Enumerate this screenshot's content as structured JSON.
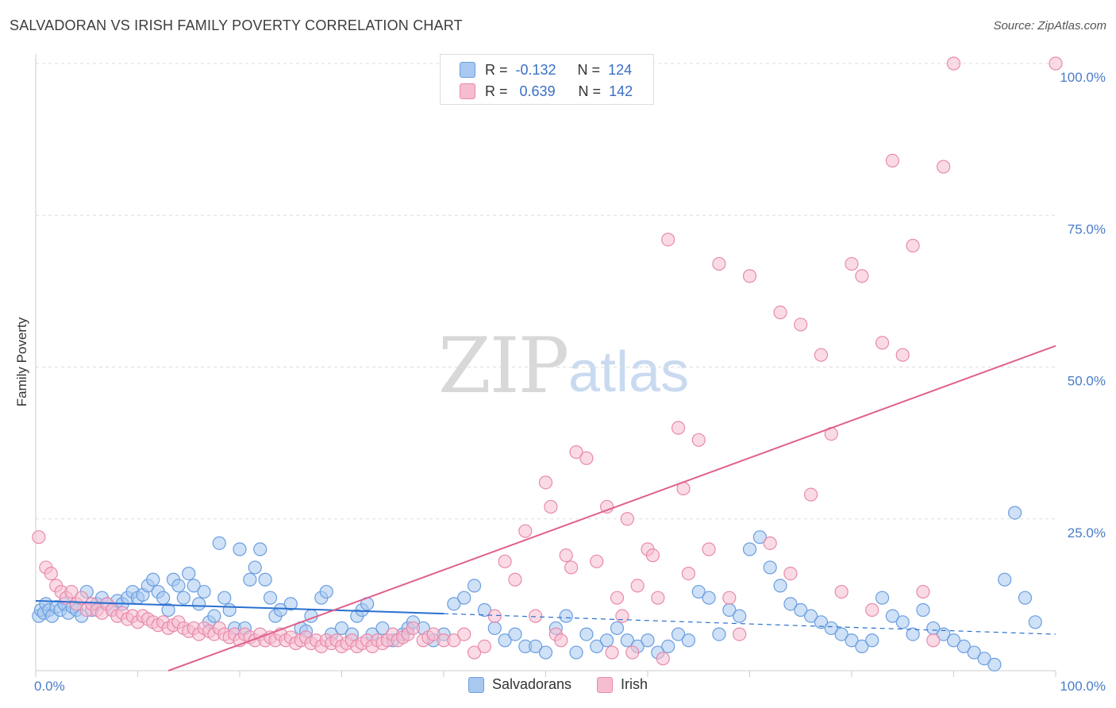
{
  "title": "SALVADORAN VS IRISH FAMILY POVERTY CORRELATION CHART",
  "source": "Source: ZipAtlas.com",
  "watermark": {
    "zip": "ZIP",
    "atlas": "atlas"
  },
  "colors": {
    "blue_fill": "#a8c8f0",
    "blue_stroke": "#6a9ee0",
    "blue_line": "#2a6fcf",
    "pink_fill": "#f6bdd0",
    "pink_stroke": "#e88aab",
    "pink_line": "#e0608c",
    "tick_text": "#4a7cc9",
    "grid": "#dddddd"
  },
  "legend": {
    "rows": [
      {
        "r_label": "R =",
        "r_value": "-0.132",
        "n_label": "N =",
        "n_value": "124"
      },
      {
        "r_label": "R =",
        "r_value": "0.639",
        "n_label": "N =",
        "n_value": "142"
      }
    ]
  },
  "bottom_legend": [
    "Salvadorans",
    "Irish"
  ],
  "chart_data": {
    "type": "scatter",
    "ylabel": "Family Poverty",
    "xlim": [
      0,
      100
    ],
    "ylim": [
      0,
      100
    ],
    "x_ticks": [
      "0.0%",
      "100.0%"
    ],
    "y_ticks": [
      {
        "v": 25,
        "label": "25.0%"
      },
      {
        "v": 50,
        "label": "50.0%"
      },
      {
        "v": 75,
        "label": "75.0%"
      },
      {
        "v": 100,
        "label": "100.0%"
      }
    ],
    "grid": true,
    "legend_position": "top-center",
    "series": [
      {
        "name": "Salvadorans",
        "trend": {
          "x0": 0,
          "y0": 11.5,
          "x1": 40,
          "y1": 9.4,
          "dash_x1": 100,
          "dash_y1": 6.0
        },
        "points": [
          [
            0.3,
            9
          ],
          [
            0.5,
            10
          ],
          [
            0.8,
            9.5
          ],
          [
            1,
            11
          ],
          [
            1.3,
            10
          ],
          [
            1.6,
            9
          ],
          [
            2,
            10.5
          ],
          [
            2.4,
            10
          ],
          [
            2.8,
            11
          ],
          [
            3.2,
            9.5
          ],
          [
            3.6,
            10.5
          ],
          [
            4,
            10
          ],
          [
            4.5,
            9
          ],
          [
            5,
            13
          ],
          [
            5.5,
            10
          ],
          [
            6,
            11
          ],
          [
            6.5,
            12
          ],
          [
            7,
            11
          ],
          [
            7.5,
            10
          ],
          [
            8,
            11.5
          ],
          [
            8.5,
            11
          ],
          [
            9,
            12
          ],
          [
            9.5,
            13
          ],
          [
            10,
            12
          ],
          [
            10.5,
            12.5
          ],
          [
            11,
            14
          ],
          [
            11.5,
            15
          ],
          [
            12,
            13
          ],
          [
            12.5,
            12
          ],
          [
            13,
            10
          ],
          [
            13.5,
            15
          ],
          [
            14,
            14
          ],
          [
            14.5,
            12
          ],
          [
            15,
            16
          ],
          [
            15.5,
            14
          ],
          [
            16,
            11
          ],
          [
            16.5,
            13
          ],
          [
            17,
            8
          ],
          [
            17.5,
            9
          ],
          [
            18,
            21
          ],
          [
            18.5,
            12
          ],
          [
            19,
            10
          ],
          [
            19.5,
            7
          ],
          [
            20,
            20
          ],
          [
            20.5,
            7
          ],
          [
            21,
            15
          ],
          [
            21.5,
            17
          ],
          [
            22,
            20
          ],
          [
            22.5,
            15
          ],
          [
            23,
            12
          ],
          [
            23.5,
            9
          ],
          [
            24,
            10
          ],
          [
            25,
            11
          ],
          [
            26,
            7
          ],
          [
            26.5,
            6.5
          ],
          [
            27,
            9
          ],
          [
            28,
            12
          ],
          [
            28.5,
            13
          ],
          [
            29,
            6
          ],
          [
            30,
            7
          ],
          [
            31,
            6
          ],
          [
            31.5,
            9
          ],
          [
            32,
            10
          ],
          [
            32.5,
            11
          ],
          [
            33,
            6
          ],
          [
            34,
            7
          ],
          [
            35,
            5
          ],
          [
            36,
            6
          ],
          [
            36.5,
            7
          ],
          [
            37,
            8
          ],
          [
            38,
            7
          ],
          [
            39,
            5
          ],
          [
            40,
            6
          ],
          [
            41,
            11
          ],
          [
            42,
            12
          ],
          [
            43,
            14
          ],
          [
            44,
            10
          ],
          [
            45,
            7
          ],
          [
            46,
            5
          ],
          [
            47,
            6
          ],
          [
            48,
            4
          ],
          [
            49,
            4
          ],
          [
            50,
            3
          ],
          [
            51,
            7
          ],
          [
            52,
            9
          ],
          [
            53,
            3
          ],
          [
            54,
            6
          ],
          [
            55,
            4
          ],
          [
            56,
            5
          ],
          [
            57,
            7
          ],
          [
            58,
            5
          ],
          [
            59,
            4
          ],
          [
            60,
            5
          ],
          [
            61,
            3
          ],
          [
            62,
            4
          ],
          [
            63,
            6
          ],
          [
            64,
            5
          ],
          [
            65,
            13
          ],
          [
            66,
            12
          ],
          [
            67,
            6
          ],
          [
            68,
            10
          ],
          [
            69,
            9
          ],
          [
            70,
            20
          ],
          [
            71,
            22
          ],
          [
            72,
            17
          ],
          [
            73,
            14
          ],
          [
            74,
            11
          ],
          [
            75,
            10
          ],
          [
            76,
            9
          ],
          [
            77,
            8
          ],
          [
            78,
            7
          ],
          [
            79,
            6
          ],
          [
            80,
            5
          ],
          [
            81,
            4
          ],
          [
            82,
            5
          ],
          [
            83,
            12
          ],
          [
            84,
            9
          ],
          [
            85,
            8
          ],
          [
            86,
            6
          ],
          [
            87,
            10
          ],
          [
            88,
            7
          ],
          [
            89,
            6
          ],
          [
            90,
            5
          ],
          [
            91,
            4
          ],
          [
            92,
            3
          ],
          [
            93,
            2
          ],
          [
            94,
            1
          ],
          [
            95,
            15
          ],
          [
            96,
            26
          ],
          [
            97,
            12
          ],
          [
            98,
            8
          ]
        ]
      },
      {
        "name": "Irish",
        "trend": {
          "x0": 0,
          "y0": -8,
          "x1": 100,
          "y1": 53.5
        },
        "points": [
          [
            0.3,
            22
          ],
          [
            1,
            17
          ],
          [
            1.5,
            16
          ],
          [
            2,
            14
          ],
          [
            2.5,
            13
          ],
          [
            3,
            12
          ],
          [
            3.5,
            13
          ],
          [
            4,
            11
          ],
          [
            4.5,
            12
          ],
          [
            5,
            10
          ],
          [
            5.5,
            11
          ],
          [
            6,
            10
          ],
          [
            6.5,
            9.5
          ],
          [
            7,
            11
          ],
          [
            7.5,
            10
          ],
          [
            8,
            9
          ],
          [
            8.5,
            9.5
          ],
          [
            9,
            8.5
          ],
          [
            9.5,
            9
          ],
          [
            10,
            8
          ],
          [
            10.5,
            9
          ],
          [
            11,
            8.5
          ],
          [
            11.5,
            8
          ],
          [
            12,
            7.5
          ],
          [
            12.5,
            8
          ],
          [
            13,
            7
          ],
          [
            13.5,
            7.5
          ],
          [
            14,
            8
          ],
          [
            14.5,
            7
          ],
          [
            15,
            6.5
          ],
          [
            15.5,
            7
          ],
          [
            16,
            6
          ],
          [
            16.5,
            7
          ],
          [
            17,
            6.5
          ],
          [
            17.5,
            6
          ],
          [
            18,
            7
          ],
          [
            18.5,
            6
          ],
          [
            19,
            5.5
          ],
          [
            19.5,
            6
          ],
          [
            20,
            5
          ],
          [
            20.5,
            6
          ],
          [
            21,
            5.5
          ],
          [
            21.5,
            5
          ],
          [
            22,
            6
          ],
          [
            22.5,
            5
          ],
          [
            23,
            5.5
          ],
          [
            23.5,
            5
          ],
          [
            24,
            6
          ],
          [
            24.5,
            5
          ],
          [
            25,
            5.5
          ],
          [
            25.5,
            4.5
          ],
          [
            26,
            5
          ],
          [
            26.5,
            5.5
          ],
          [
            27,
            4.5
          ],
          [
            27.5,
            5
          ],
          [
            28,
            4
          ],
          [
            28.5,
            5
          ],
          [
            29,
            4.5
          ],
          [
            29.5,
            5
          ],
          [
            30,
            4
          ],
          [
            30.5,
            4.5
          ],
          [
            31,
            5
          ],
          [
            31.5,
            4
          ],
          [
            32,
            4.5
          ],
          [
            32.5,
            5
          ],
          [
            33,
            4
          ],
          [
            33.5,
            5
          ],
          [
            34,
            4.5
          ],
          [
            34.5,
            5
          ],
          [
            35,
            6
          ],
          [
            35.5,
            5
          ],
          [
            36,
            5.5
          ],
          [
            36.5,
            6
          ],
          [
            37,
            7
          ],
          [
            38,
            5
          ],
          [
            38.5,
            5.5
          ],
          [
            39,
            6
          ],
          [
            40,
            5
          ],
          [
            41,
            5
          ],
          [
            42,
            6
          ],
          [
            43,
            3
          ],
          [
            44,
            4
          ],
          [
            45,
            9
          ],
          [
            46,
            18
          ],
          [
            47,
            15
          ],
          [
            48,
            23
          ],
          [
            49,
            9
          ],
          [
            50,
            31
          ],
          [
            50.5,
            27
          ],
          [
            51,
            6
          ],
          [
            51.5,
            5
          ],
          [
            52,
            19
          ],
          [
            52.5,
            17
          ],
          [
            53,
            36
          ],
          [
            54,
            35
          ],
          [
            55,
            18
          ],
          [
            56,
            27
          ],
          [
            56.5,
            3
          ],
          [
            57,
            12
          ],
          [
            57.5,
            9
          ],
          [
            58,
            25
          ],
          [
            58.5,
            3
          ],
          [
            59,
            14
          ],
          [
            60,
            20
          ],
          [
            60.5,
            19
          ],
          [
            61,
            12
          ],
          [
            61.5,
            2
          ],
          [
            62,
            71
          ],
          [
            63,
            40
          ],
          [
            63.5,
            30
          ],
          [
            64,
            16
          ],
          [
            65,
            38
          ],
          [
            66,
            20
          ],
          [
            67,
            67
          ],
          [
            68,
            12
          ],
          [
            69,
            6
          ],
          [
            70,
            65
          ],
          [
            72,
            21
          ],
          [
            73,
            59
          ],
          [
            74,
            16
          ],
          [
            75,
            57
          ],
          [
            76,
            29
          ],
          [
            77,
            52
          ],
          [
            78,
            39
          ],
          [
            79,
            13
          ],
          [
            80,
            67
          ],
          [
            81,
            65
          ],
          [
            82,
            10
          ],
          [
            83,
            54
          ],
          [
            84,
            84
          ],
          [
            85,
            52
          ],
          [
            86,
            70
          ],
          [
            87,
            13
          ],
          [
            88,
            5
          ],
          [
            89,
            83
          ],
          [
            90,
            100
          ],
          [
            100,
            100
          ]
        ]
      }
    ]
  }
}
